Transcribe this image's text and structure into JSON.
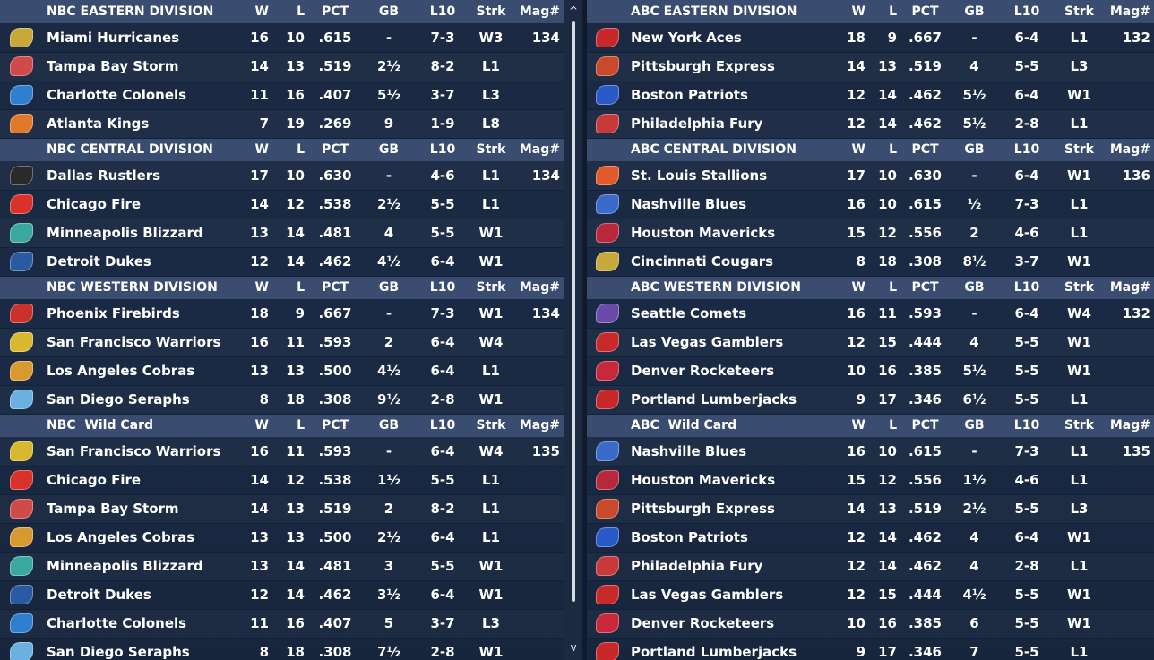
{
  "scrollbar": {
    "up_glyph": "^",
    "down_glyph": "v"
  },
  "columns": [
    "W",
    "L",
    "PCT",
    "GB",
    "L10",
    "Strk",
    "Mag#"
  ],
  "left_sections": [
    {
      "title": "NBC EASTERN DIVISION",
      "rows": [
        {
          "logo": "hurricanes-logo",
          "color": "#c9a83a",
          "team": "Miami Hurricanes",
          "w": "16",
          "l": "10",
          "pct": ".615",
          "gb": "-",
          "l10": "7-3",
          "strk": "W3",
          "mag": "134"
        },
        {
          "logo": "storm-logo",
          "color": "#d04a4a",
          "team": "Tampa Bay Storm",
          "w": "14",
          "l": "13",
          "pct": ".519",
          "gb": "2½",
          "l10": "8-2",
          "strk": "L1",
          "mag": ""
        },
        {
          "logo": "colonels-logo",
          "color": "#2f7fd0",
          "team": "Charlotte Colonels",
          "w": "11",
          "l": "16",
          "pct": ".407",
          "gb": "5½",
          "l10": "3-7",
          "strk": "L3",
          "mag": ""
        },
        {
          "logo": "kings-logo",
          "color": "#e07a2a",
          "team": "Atlanta Kings",
          "w": "7",
          "l": "19",
          "pct": ".269",
          "gb": "9",
          "l10": "1-9",
          "strk": "L8",
          "mag": ""
        }
      ]
    },
    {
      "title": "NBC CENTRAL DIVISION",
      "rows": [
        {
          "logo": "rustlers-logo",
          "color": "#2a2a2a",
          "team": "Dallas Rustlers",
          "w": "17",
          "l": "10",
          "pct": ".630",
          "gb": "-",
          "l10": "4-6",
          "strk": "L1",
          "mag": "134"
        },
        {
          "logo": "fire-logo",
          "color": "#d8322a",
          "team": "Chicago Fire",
          "w": "14",
          "l": "12",
          "pct": ".538",
          "gb": "2½",
          "l10": "5-5",
          "strk": "L1",
          "mag": ""
        },
        {
          "logo": "blizzard-logo",
          "color": "#3aa8a0",
          "team": "Minneapolis Blizzard",
          "w": "13",
          "l": "14",
          "pct": ".481",
          "gb": "4",
          "l10": "5-5",
          "strk": "W1",
          "mag": ""
        },
        {
          "logo": "dukes-logo",
          "color": "#2a5aa0",
          "team": "Detroit Dukes",
          "w": "12",
          "l": "14",
          "pct": ".462",
          "gb": "4½",
          "l10": "6-4",
          "strk": "W1",
          "mag": ""
        }
      ]
    },
    {
      "title": "NBC WESTERN DIVISION",
      "rows": [
        {
          "logo": "firebirds-logo",
          "color": "#c8322a",
          "team": "Phoenix Firebirds",
          "w": "18",
          "l": "9",
          "pct": ".667",
          "gb": "-",
          "l10": "7-3",
          "strk": "W1",
          "mag": "134"
        },
        {
          "logo": "warriors-logo",
          "color": "#d8b830",
          "team": "San Francisco Warriors",
          "w": "16",
          "l": "11",
          "pct": ".593",
          "gb": "2",
          "l10": "6-4",
          "strk": "W4",
          "mag": ""
        },
        {
          "logo": "cobras-logo",
          "color": "#d89a30",
          "team": "Los Angeles Cobras",
          "w": "13",
          "l": "13",
          "pct": ".500",
          "gb": "4½",
          "l10": "6-4",
          "strk": "L1",
          "mag": ""
        },
        {
          "logo": "seraphs-logo",
          "color": "#6ab0e0",
          "team": "San Diego Seraphs",
          "w": "8",
          "l": "18",
          "pct": ".308",
          "gb": "9½",
          "l10": "2-8",
          "strk": "W1",
          "mag": ""
        }
      ]
    },
    {
      "title": "NBC  Wild Card",
      "rows": [
        {
          "logo": "warriors-logo",
          "color": "#d8b830",
          "team": "San Francisco Warriors",
          "w": "16",
          "l": "11",
          "pct": ".593",
          "gb": "-",
          "l10": "6-4",
          "strk": "W4",
          "mag": "135"
        },
        {
          "logo": "fire-logo",
          "color": "#d8322a",
          "team": "Chicago Fire",
          "w": "14",
          "l": "12",
          "pct": ".538",
          "gb": "1½",
          "l10": "5-5",
          "strk": "L1",
          "mag": ""
        },
        {
          "logo": "storm-logo",
          "color": "#d04a4a",
          "team": "Tampa Bay Storm",
          "w": "14",
          "l": "13",
          "pct": ".519",
          "gb": "2",
          "l10": "8-2",
          "strk": "L1",
          "mag": ""
        },
        {
          "logo": "cobras-logo",
          "color": "#d89a30",
          "team": "Los Angeles Cobras",
          "w": "13",
          "l": "13",
          "pct": ".500",
          "gb": "2½",
          "l10": "6-4",
          "strk": "L1",
          "mag": ""
        },
        {
          "logo": "blizzard-logo",
          "color": "#3aa8a0",
          "team": "Minneapolis Blizzard",
          "w": "13",
          "l": "14",
          "pct": ".481",
          "gb": "3",
          "l10": "5-5",
          "strk": "W1",
          "mag": ""
        },
        {
          "logo": "dukes-logo",
          "color": "#2a5aa0",
          "team": "Detroit Dukes",
          "w": "12",
          "l": "14",
          "pct": ".462",
          "gb": "3½",
          "l10": "6-4",
          "strk": "W1",
          "mag": ""
        },
        {
          "logo": "colonels-logo",
          "color": "#2f7fd0",
          "team": "Charlotte Colonels",
          "w": "11",
          "l": "16",
          "pct": ".407",
          "gb": "5",
          "l10": "3-7",
          "strk": "L3",
          "mag": ""
        },
        {
          "logo": "seraphs-logo",
          "color": "#6ab0e0",
          "team": "San Diego Seraphs",
          "w": "8",
          "l": "18",
          "pct": ".308",
          "gb": "7½",
          "l10": "2-8",
          "strk": "W1",
          "mag": ""
        }
      ]
    }
  ],
  "right_sections": [
    {
      "title": "ABC EASTERN DIVISION",
      "rows": [
        {
          "logo": "aces-logo",
          "color": "#c8282a",
          "team": "New York Aces",
          "w": "18",
          "l": "9",
          "pct": ".667",
          "gb": "-",
          "l10": "6-4",
          "strk": "L1",
          "mag": "132"
        },
        {
          "logo": "express-logo",
          "color": "#c84a2a",
          "team": "Pittsburgh Express",
          "w": "14",
          "l": "13",
          "pct": ".519",
          "gb": "4",
          "l10": "5-5",
          "strk": "L3",
          "mag": ""
        },
        {
          "logo": "patriots-logo",
          "color": "#2a5ac8",
          "team": "Boston Patriots",
          "w": "12",
          "l": "14",
          "pct": ".462",
          "gb": "5½",
          "l10": "6-4",
          "strk": "W1",
          "mag": ""
        },
        {
          "logo": "fury-logo",
          "color": "#c83a3a",
          "team": "Philadelphia Fury",
          "w": "12",
          "l": "14",
          "pct": ".462",
          "gb": "5½",
          "l10": "2-8",
          "strk": "L1",
          "mag": ""
        }
      ]
    },
    {
      "title": "ABC CENTRAL DIVISION",
      "rows": [
        {
          "logo": "stallions-logo",
          "color": "#e05a2a",
          "team": "St. Louis Stallions",
          "w": "17",
          "l": "10",
          "pct": ".630",
          "gb": "-",
          "l10": "6-4",
          "strk": "W1",
          "mag": "136"
        },
        {
          "logo": "blues-logo",
          "color": "#3a6ac8",
          "team": "Nashville Blues",
          "w": "16",
          "l": "10",
          "pct": ".615",
          "gb": "½",
          "l10": "7-3",
          "strk": "L1",
          "mag": ""
        },
        {
          "logo": "mavericks-logo",
          "color": "#b8283a",
          "team": "Houston Mavericks",
          "w": "15",
          "l": "12",
          "pct": ".556",
          "gb": "2",
          "l10": "4-6",
          "strk": "L1",
          "mag": ""
        },
        {
          "logo": "cougars-logo",
          "color": "#c8a83a",
          "team": "Cincinnati Cougars",
          "w": "8",
          "l": "18",
          "pct": ".308",
          "gb": "8½",
          "l10": "3-7",
          "strk": "W1",
          "mag": ""
        }
      ]
    },
    {
      "title": "ABC WESTERN DIVISION",
      "rows": [
        {
          "logo": "comets-logo",
          "color": "#6a4aa8",
          "team": "Seattle Comets",
          "w": "16",
          "l": "11",
          "pct": ".593",
          "gb": "-",
          "l10": "6-4",
          "strk": "W4",
          "mag": "132"
        },
        {
          "logo": "gamblers-logo",
          "color": "#c82a2a",
          "team": "Las Vegas Gamblers",
          "w": "12",
          "l": "15",
          "pct": ".444",
          "gb": "4",
          "l10": "5-5",
          "strk": "W1",
          "mag": ""
        },
        {
          "logo": "rocketeers-logo",
          "color": "#c8283a",
          "team": "Denver Rocketeers",
          "w": "10",
          "l": "16",
          "pct": ".385",
          "gb": "5½",
          "l10": "5-5",
          "strk": "W1",
          "mag": ""
        },
        {
          "logo": "lumberjacks-logo",
          "color": "#c8282a",
          "team": "Portland Lumberjacks",
          "w": "9",
          "l": "17",
          "pct": ".346",
          "gb": "6½",
          "l10": "5-5",
          "strk": "L1",
          "mag": ""
        }
      ]
    },
    {
      "title": "ABC  Wild Card",
      "rows": [
        {
          "logo": "blues-logo",
          "color": "#3a6ac8",
          "team": "Nashville Blues",
          "w": "16",
          "l": "10",
          "pct": ".615",
          "gb": "-",
          "l10": "7-3",
          "strk": "L1",
          "mag": "135"
        },
        {
          "logo": "mavericks-logo",
          "color": "#b8283a",
          "team": "Houston Mavericks",
          "w": "15",
          "l": "12",
          "pct": ".556",
          "gb": "1½",
          "l10": "4-6",
          "strk": "L1",
          "mag": ""
        },
        {
          "logo": "express-logo",
          "color": "#c84a2a",
          "team": "Pittsburgh Express",
          "w": "14",
          "l": "13",
          "pct": ".519",
          "gb": "2½",
          "l10": "5-5",
          "strk": "L3",
          "mag": ""
        },
        {
          "logo": "patriots-logo",
          "color": "#2a5ac8",
          "team": "Boston Patriots",
          "w": "12",
          "l": "14",
          "pct": ".462",
          "gb": "4",
          "l10": "6-4",
          "strk": "W1",
          "mag": ""
        },
        {
          "logo": "fury-logo",
          "color": "#c83a3a",
          "team": "Philadelphia Fury",
          "w": "12",
          "l": "14",
          "pct": ".462",
          "gb": "4",
          "l10": "2-8",
          "strk": "L1",
          "mag": ""
        },
        {
          "logo": "gamblers-logo",
          "color": "#c82a2a",
          "team": "Las Vegas Gamblers",
          "w": "12",
          "l": "15",
          "pct": ".444",
          "gb": "4½",
          "l10": "5-5",
          "strk": "W1",
          "mag": ""
        },
        {
          "logo": "rocketeers-logo",
          "color": "#c8283a",
          "team": "Denver Rocketeers",
          "w": "10",
          "l": "16",
          "pct": ".385",
          "gb": "6",
          "l10": "5-5",
          "strk": "W1",
          "mag": ""
        },
        {
          "logo": "lumberjacks-logo",
          "color": "#c8282a",
          "team": "Portland Lumberjacks",
          "w": "9",
          "l": "17",
          "pct": ".346",
          "gb": "7",
          "l10": "5-5",
          "strk": "L1",
          "mag": ""
        }
      ]
    }
  ]
}
